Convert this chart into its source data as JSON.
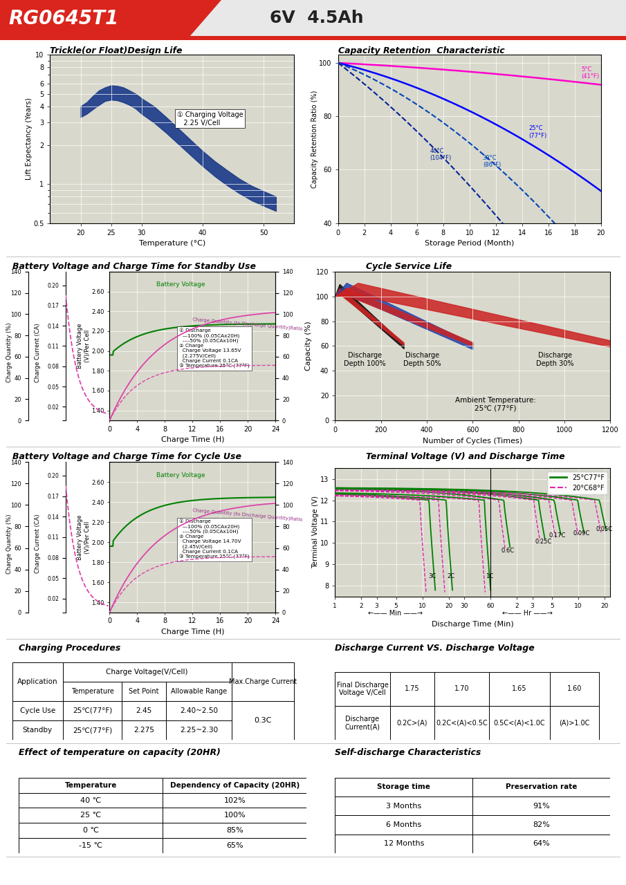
{
  "title_model": "RG0645T1",
  "title_spec": "6V  4.5Ah",
  "header_bg": "#d9251d",
  "grid_bg": "#d8d8cc",
  "chart1_title": "Trickle(or Float)Design Life",
  "chart1_xlabel": "Temperature (°C)",
  "chart1_ylabel": "Lift Expectancy (Years)",
  "chart2_title": "Capacity Retention  Characteristic",
  "chart2_xlabel": "Storage Period (Month)",
  "chart2_ylabel": "Capacity Retention Ratio (%)",
  "chart3_title": "Battery Voltage and Charge Time for Standby Use",
  "chart3_xlabel": "Charge Time (H)",
  "chart4_title": "Cycle Service Life",
  "chart4_xlabel": "Number of Cycles (Times)",
  "chart4_ylabel": "Capacity (%)",
  "chart5_title": "Battery Voltage and Charge Time for Cycle Use",
  "chart5_xlabel": "Charge Time (H)",
  "chart6_title": "Terminal Voltage (V) and Discharge Time",
  "chart6_ylabel": "Terminal Voltage (V)",
  "charging_title": "Charging Procedures",
  "discharge_cv_title": "Discharge Current VS. Discharge Voltage",
  "temp_capacity_title": "Effect of temperature on capacity (20HR)",
  "self_discharge_title": "Self-discharge Characteristics",
  "temp_capacity_rows": [
    [
      "40 ℃",
      "102%"
    ],
    [
      "25 ℃",
      "100%"
    ],
    [
      "0 ℃",
      "85%"
    ],
    [
      "-15 ℃",
      "65%"
    ]
  ],
  "self_discharge_rows": [
    [
      "3 Months",
      "91%"
    ],
    [
      "6 Months",
      "82%"
    ],
    [
      "12 Months",
      "64%"
    ]
  ]
}
